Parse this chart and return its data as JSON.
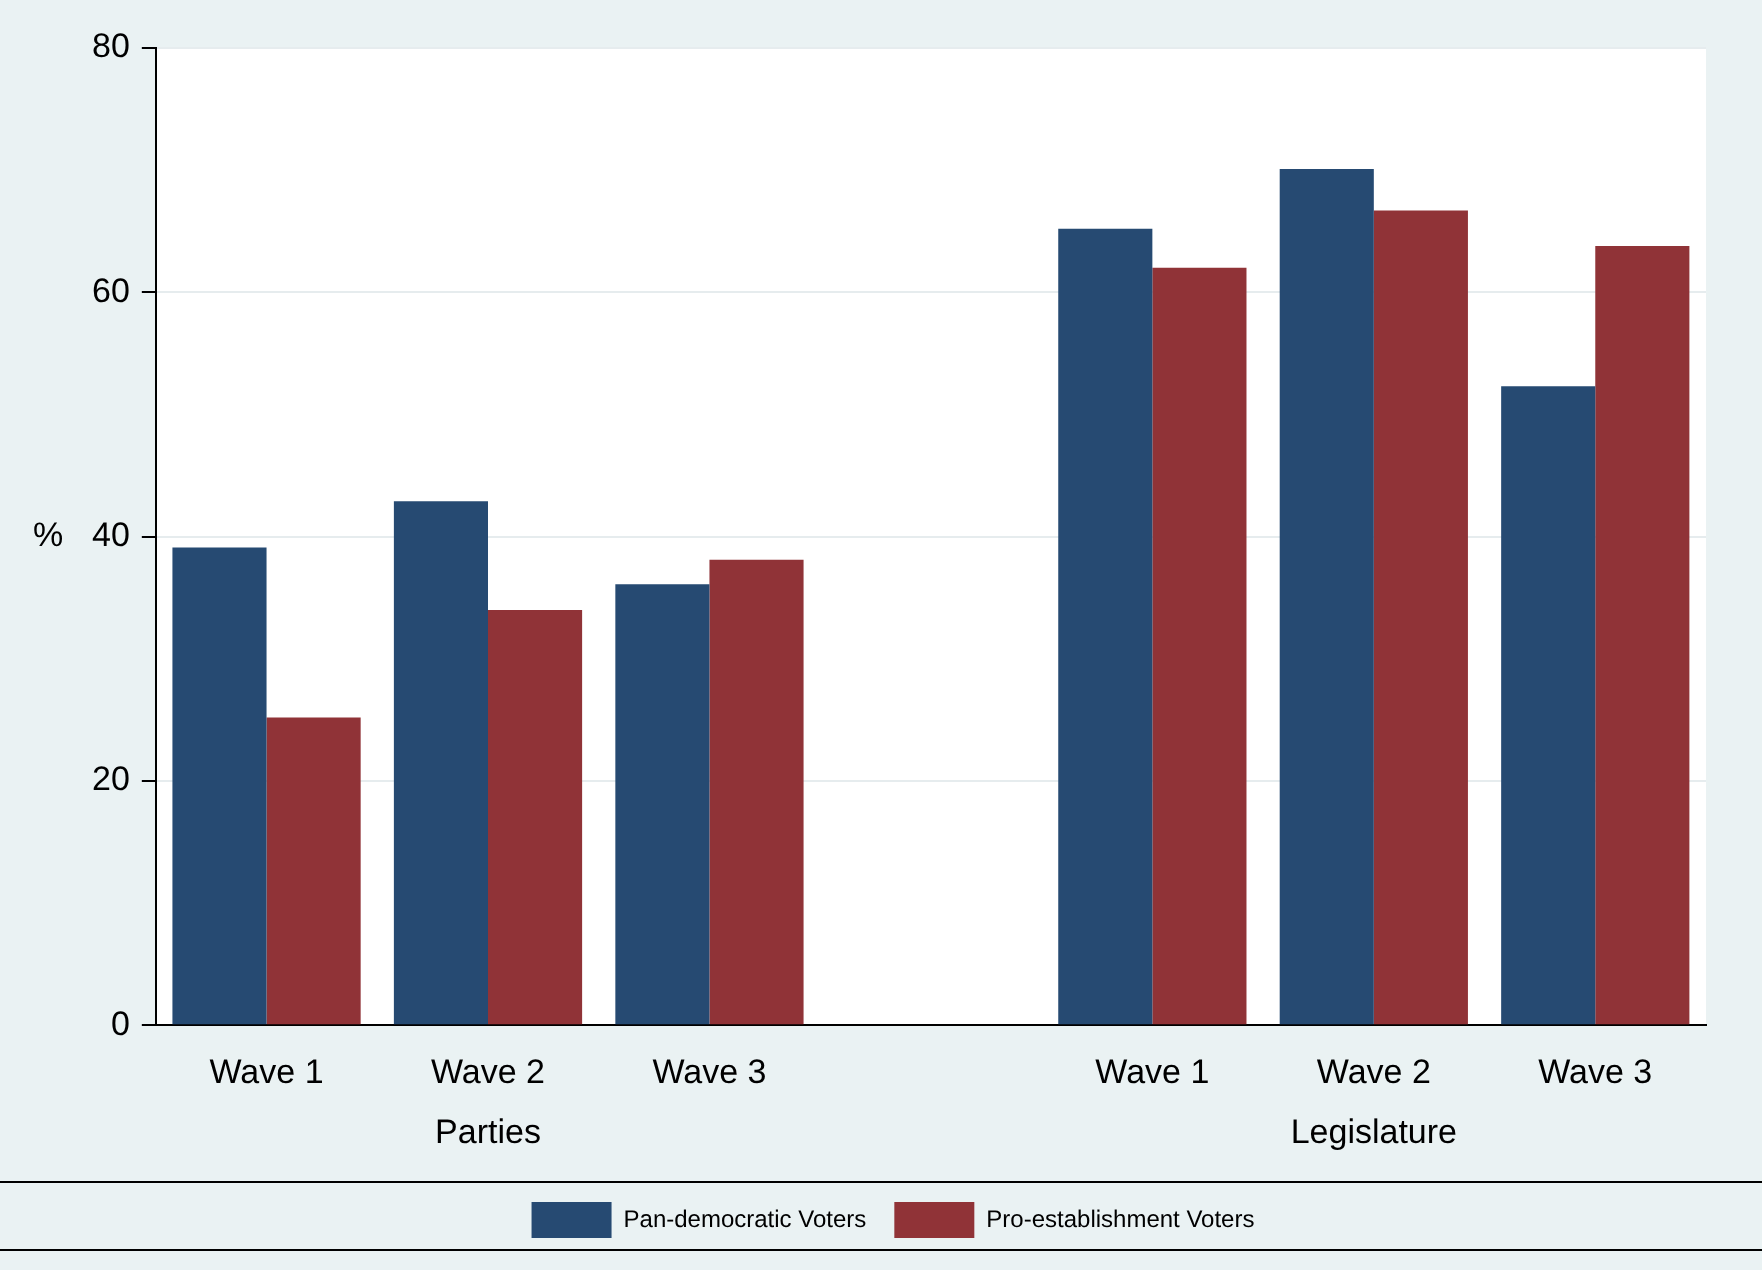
{
  "chart_data": {
    "type": "bar",
    "ylabel": "%",
    "categories": [
      "Wave 1",
      "Wave 2",
      "Wave 3",
      null,
      "Wave 1",
      "Wave 2",
      "Wave 3"
    ],
    "series": [
      {
        "name": "Pan-democratic Voters",
        "color": "#264a72",
        "values": [
          39.1,
          42.9,
          36.1,
          null,
          65.2,
          70.1,
          52.3
        ]
      },
      {
        "name": "Pro-establishment Voters",
        "color": "#903337",
        "values": [
          25.2,
          34.0,
          38.1,
          null,
          62.0,
          66.7,
          63.8
        ]
      }
    ],
    "ylim": [
      0,
      80
    ],
    "yticks": [
      0,
      20,
      40,
      60,
      80
    ],
    "grid": "y",
    "legend": "bottom",
    "annotations": [
      "Parties",
      "Legislature"
    ]
  }
}
